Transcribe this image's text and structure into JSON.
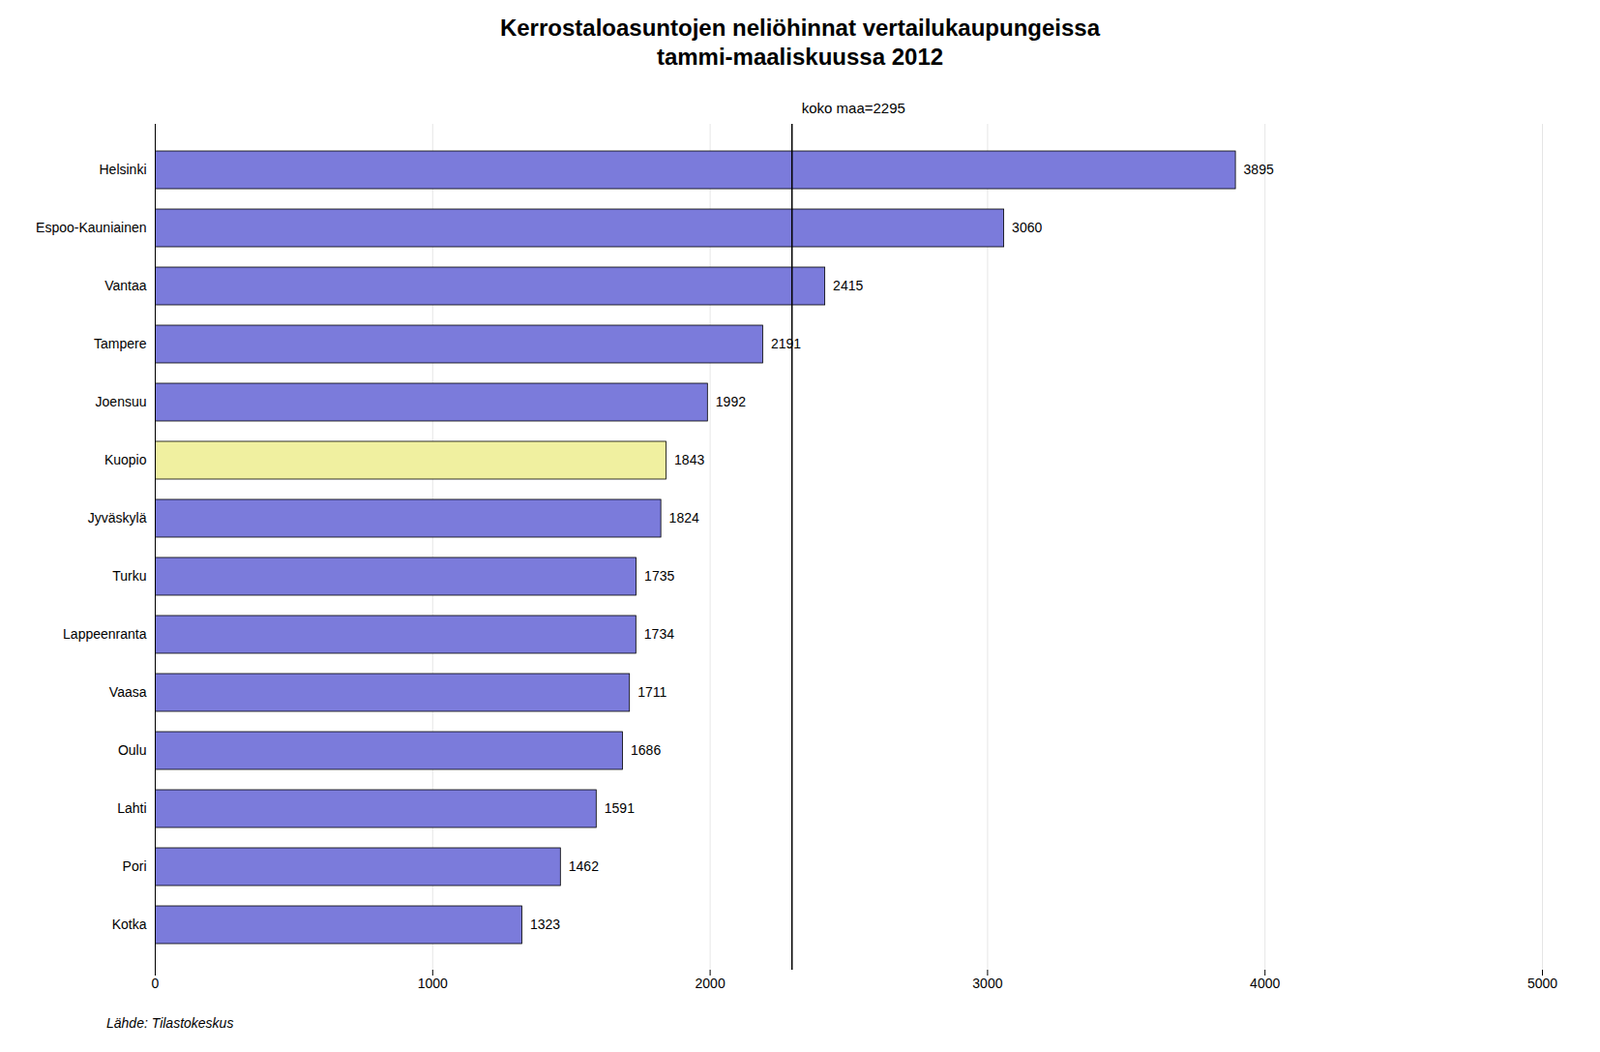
{
  "chart_data": {
    "type": "bar",
    "orientation": "horizontal",
    "title": "Kerrostaloasuntojen neliöhinnat vertailukaupungeissa\ntammi-maaliskuussa 2012",
    "caption": "Lähde: Tilastokeskus",
    "categories": [
      "Helsinki",
      "Espoo-Kauniainen",
      "Vantaa",
      "Tampere",
      "Joensuu",
      "Kuopio",
      "Jyväskylä",
      "Turku",
      "Lappeenranta",
      "Vaasa",
      "Oulu",
      "Lahti",
      "Pori",
      "Kotka"
    ],
    "values": [
      3895,
      3060,
      2415,
      2191,
      1992,
      1843,
      1824,
      1735,
      1734,
      1711,
      1686,
      1591,
      1462,
      1323
    ],
    "colors": [
      "#7b7bdb",
      "#7b7bdb",
      "#7b7bdb",
      "#7b7bdb",
      "#7b7bdb",
      "#f0f0a0",
      "#7b7bdb",
      "#7b7bdb",
      "#7b7bdb",
      "#7b7bdb",
      "#7b7bdb",
      "#7b7bdb",
      "#7b7bdb",
      "#7b7bdb"
    ],
    "edge_color": "#000000",
    "xlim": [
      0,
      5000
    ],
    "xticks": [
      0,
      1000,
      2000,
      3000,
      4000,
      5000
    ],
    "grid": true,
    "data_labels": true,
    "reference_lines": [
      {
        "x": 2295,
        "label": "koko maa=2295"
      }
    ]
  }
}
